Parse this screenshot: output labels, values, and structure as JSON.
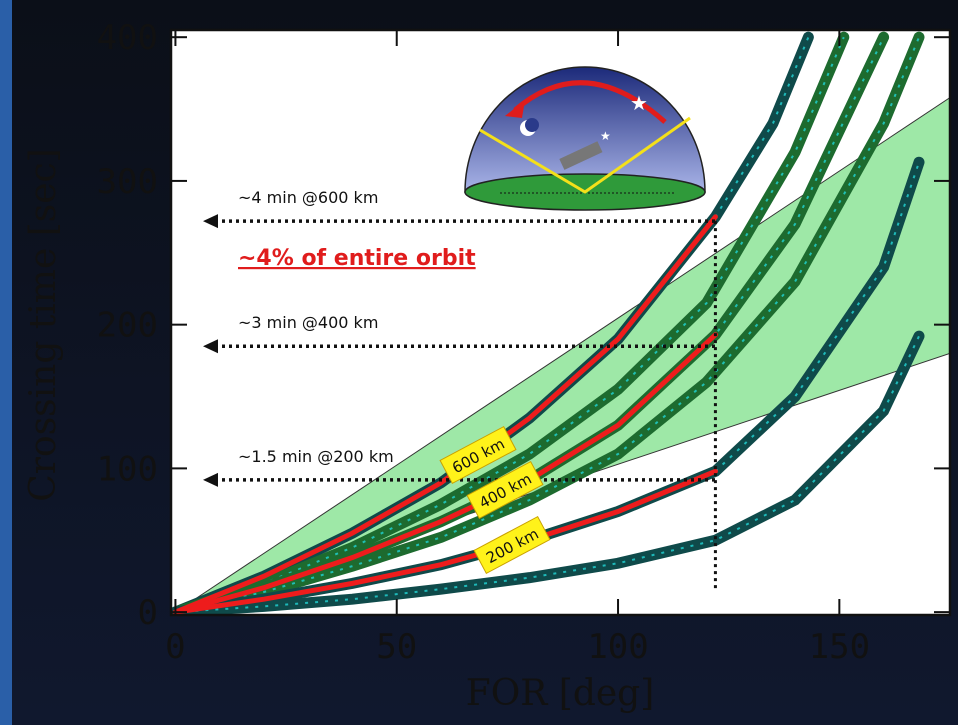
{
  "chart_data": {
    "type": "line",
    "xlabel": "FOR [deg]",
    "ylabel": "Crossing time [sec]",
    "xlim": [
      -1,
      175
    ],
    "ylim": [
      -2,
      405
    ],
    "xticks": [
      0,
      50,
      100,
      150
    ],
    "yticks": [
      0,
      100,
      200,
      300,
      400
    ],
    "band": {
      "color": "#7ee08a",
      "x": [
        0,
        175
      ],
      "upper": [
        0,
        358
      ],
      "lower": [
        0,
        180
      ]
    },
    "series": [
      {
        "color": "#0f4a4a",
        "x": [
          0,
          20,
          40,
          60,
          80,
          100,
          122,
          135,
          143
        ],
        "values": [
          0,
          25,
          55,
          90,
          135,
          190,
          275,
          340,
          400
        ]
      },
      {
        "color": "#1d6b2f",
        "x": [
          0,
          20,
          40,
          60,
          80,
          100,
          120,
          140,
          151
        ],
        "values": [
          0,
          20,
          45,
          75,
          110,
          155,
          215,
          320,
          400
        ]
      },
      {
        "color": "#1d6b2f",
        "x": [
          0,
          20,
          40,
          60,
          80,
          100,
          122,
          140,
          160
        ],
        "values": [
          0,
          17,
          38,
          63,
          92,
          130,
          193,
          270,
          400
        ]
      },
      {
        "color": "#1d6b2f",
        "x": [
          0,
          20,
          40,
          60,
          80,
          100,
          120,
          140,
          160,
          168
        ],
        "values": [
          0,
          14,
          32,
          52,
          78,
          110,
          160,
          230,
          340,
          400
        ]
      },
      {
        "color": "#0f4a4a",
        "x": [
          0,
          20,
          40,
          60,
          80,
          100,
          122,
          140,
          160,
          168
        ],
        "values": [
          0,
          9,
          20,
          33,
          50,
          70,
          98,
          150,
          240,
          313
        ]
      },
      {
        "color": "#0f4a4a",
        "x": [
          0,
          20,
          40,
          60,
          80,
          100,
          122,
          140,
          160,
          168
        ],
        "values": [
          0,
          4,
          9,
          16,
          24,
          34,
          50,
          78,
          140,
          192
        ]
      },
      {
        "color": "#ee1c1c",
        "x": [
          0,
          20,
          40,
          60,
          80,
          100,
          122
        ],
        "values": [
          0,
          25,
          55,
          90,
          135,
          190,
          275
        ]
      },
      {
        "color": "#ee1c1c",
        "x": [
          0,
          20,
          40,
          60,
          80,
          100,
          122
        ],
        "values": [
          0,
          17,
          38,
          63,
          92,
          130,
          193
        ]
      },
      {
        "color": "#ee1c1c",
        "x": [
          0,
          20,
          40,
          60,
          80,
          100,
          122
        ],
        "values": [
          0,
          9,
          20,
          33,
          50,
          70,
          98
        ]
      }
    ],
    "guides": [
      {
        "label": "~4 min @600 km",
        "y": 272
      },
      {
        "label": "~3 min @400 km",
        "y": 185
      },
      {
        "label": "~1.5 min @200 km",
        "y": 92
      }
    ],
    "vline_x": 122,
    "highlight": "~4% of entire orbit",
    "altitude_labels": [
      "600 km",
      "400 km",
      "200 km"
    ]
  }
}
